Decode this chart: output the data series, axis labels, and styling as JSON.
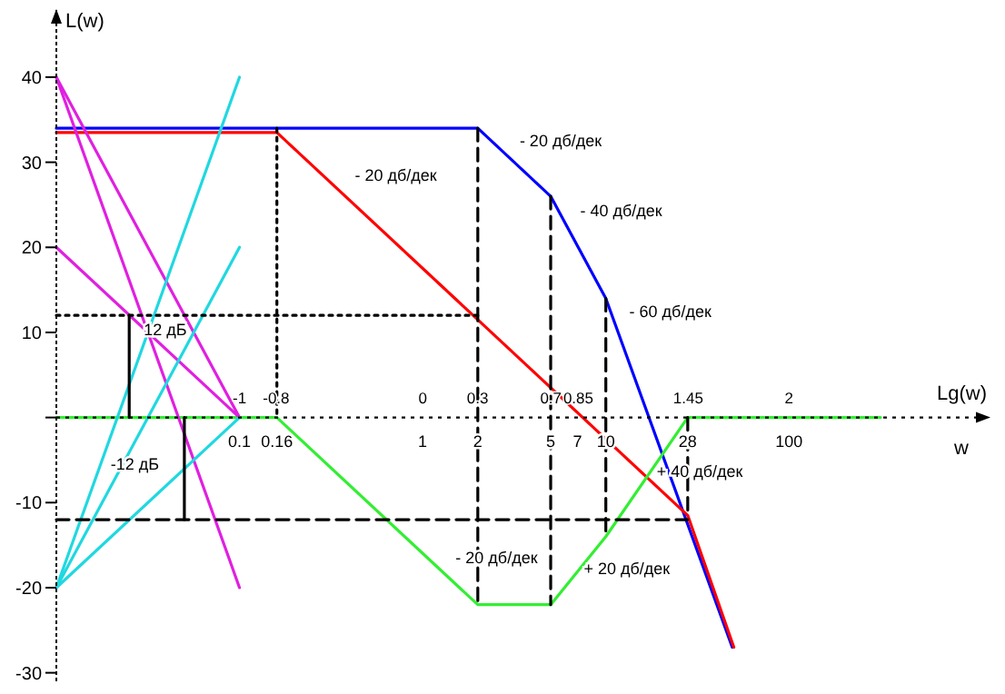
{
  "chart_data": {
    "type": "line",
    "ylabel": "L(w)",
    "xlabel": "w",
    "x2label": "Lg(w)",
    "log": "x",
    "xlim": [
      0.01,
      1259
    ],
    "ylim": [
      -31,
      48
    ],
    "xticks": [
      0.1,
      0.16,
      1,
      2,
      5,
      7,
      10,
      28,
      100
    ],
    "x2lim": [
      -2,
      3.1
    ],
    "x2ticks": [
      -1,
      -0.8,
      0,
      0.3,
      0.7,
      0.85,
      1.45,
      2
    ],
    "yticks": [
      -30,
      -20,
      -10,
      {
        "value": 0,
        "label": null
      },
      10,
      20,
      30,
      40
    ],
    "grid": false,
    "marker": "none",
    "ref_lines": [
      {
        "axis": "y",
        "value": 0,
        "line_style": "dotted",
        "color": "#000000"
      }
    ],
    "series": [
      {
        "color": "#0000ff",
        "line_style": "solid",
        "x": [
          0.01,
          2,
          5,
          10,
          49
        ],
        "values": [
          34,
          34,
          26,
          14,
          -27
        ]
      },
      {
        "color": "#ff0000",
        "line_style": "solid",
        "x": [
          0.01,
          0.16,
          28,
          50
        ],
        "values": [
          33.5,
          33.5,
          -11.5,
          -27
        ]
      },
      {
        "color": "#33ee33",
        "line_style": "solid",
        "x": [
          0.01,
          0.16,
          2,
          5,
          10,
          28,
          316
        ],
        "values": [
          0,
          0,
          -22,
          -22,
          -14,
          0,
          0
        ]
      },
      {
        "color": "#e020e0",
        "line_style": "solid",
        "x": [
          0.01,
          0.1
        ],
        "values": [
          40,
          0
        ]
      },
      {
        "color": "#e020e0",
        "line_style": "solid",
        "x": [
          0.01,
          0.1
        ],
        "values": [
          40,
          -20
        ]
      },
      {
        "color": "#e020e0",
        "line_style": "solid",
        "x": [
          0.01,
          0.1
        ],
        "values": [
          20,
          0
        ]
      },
      {
        "color": "#20d8e0",
        "line_style": "solid",
        "x": [
          0.01,
          0.1
        ],
        "values": [
          -20,
          0
        ]
      },
      {
        "color": "#20d8e0",
        "line_style": "solid",
        "x": [
          0.01,
          0.1
        ],
        "values": [
          -20,
          20
        ]
      },
      {
        "color": "#20d8e0",
        "line_style": "solid",
        "x": [
          0.01,
          0.1
        ],
        "values": [
          -20,
          40
        ]
      },
      {
        "color": "#000000",
        "line_style": "dotted",
        "x": [
          0.16,
          0.16
        ],
        "values": [
          34,
          0
        ]
      },
      {
        "color": "#000000",
        "line_style": "dashed",
        "x": [
          2,
          2
        ],
        "values": [
          34,
          -22
        ]
      },
      {
        "color": "#000000",
        "line_style": "dashed",
        "x": [
          5,
          5
        ],
        "values": [
          26,
          -22
        ]
      },
      {
        "color": "#000000",
        "line_style": "dashed",
        "x": [
          10,
          10
        ],
        "values": [
          14,
          -14
        ]
      },
      {
        "color": "#000000",
        "line_style": "dashed",
        "x": [
          28,
          28
        ],
        "values": [
          0,
          -11.5
        ]
      },
      {
        "color": "#000000",
        "line_style": "dotted",
        "x": [
          0.01,
          2
        ],
        "values": [
          12,
          12
        ]
      },
      {
        "color": "#000000",
        "line_style": "dashed",
        "x": [
          0.01,
          28
        ],
        "values": [
          -12,
          -12
        ]
      },
      {
        "color": "#000000",
        "line_style": "solid",
        "x": [
          0.025,
          0.025
        ],
        "values": [
          12,
          0
        ]
      },
      {
        "color": "#000000",
        "line_style": "solid",
        "x": [
          0.05,
          0.05
        ],
        "values": [
          0,
          -12
        ]
      }
    ],
    "annotations": [
      {
        "text": "- 20 дб/дек",
        "x": 2.82,
        "y": 31
      },
      {
        "text": "- 40 дб/дек",
        "x": 6.03,
        "y": 22.8
      },
      {
        "text": "- 60 дб/дек",
        "x": 11.2,
        "y": 11
      },
      {
        "text": "- 20 дб/дек",
        "x": 0.355,
        "y": 27
      },
      {
        "text": "+ 40 дб/дек",
        "x": 15.8,
        "y": -7.8
      },
      {
        "text": "+ 20 дб/дек",
        "x": 6.31,
        "y": -19.3
      },
      {
        "text": "- 20 дб/дек",
        "x": 1.26,
        "y": -18
      },
      {
        "text": "12 дБ",
        "x": 0.025,
        "y": 8.8
      },
      {
        "text": "-12 дБ",
        "x": 0.0165,
        "y": -7
      }
    ]
  }
}
